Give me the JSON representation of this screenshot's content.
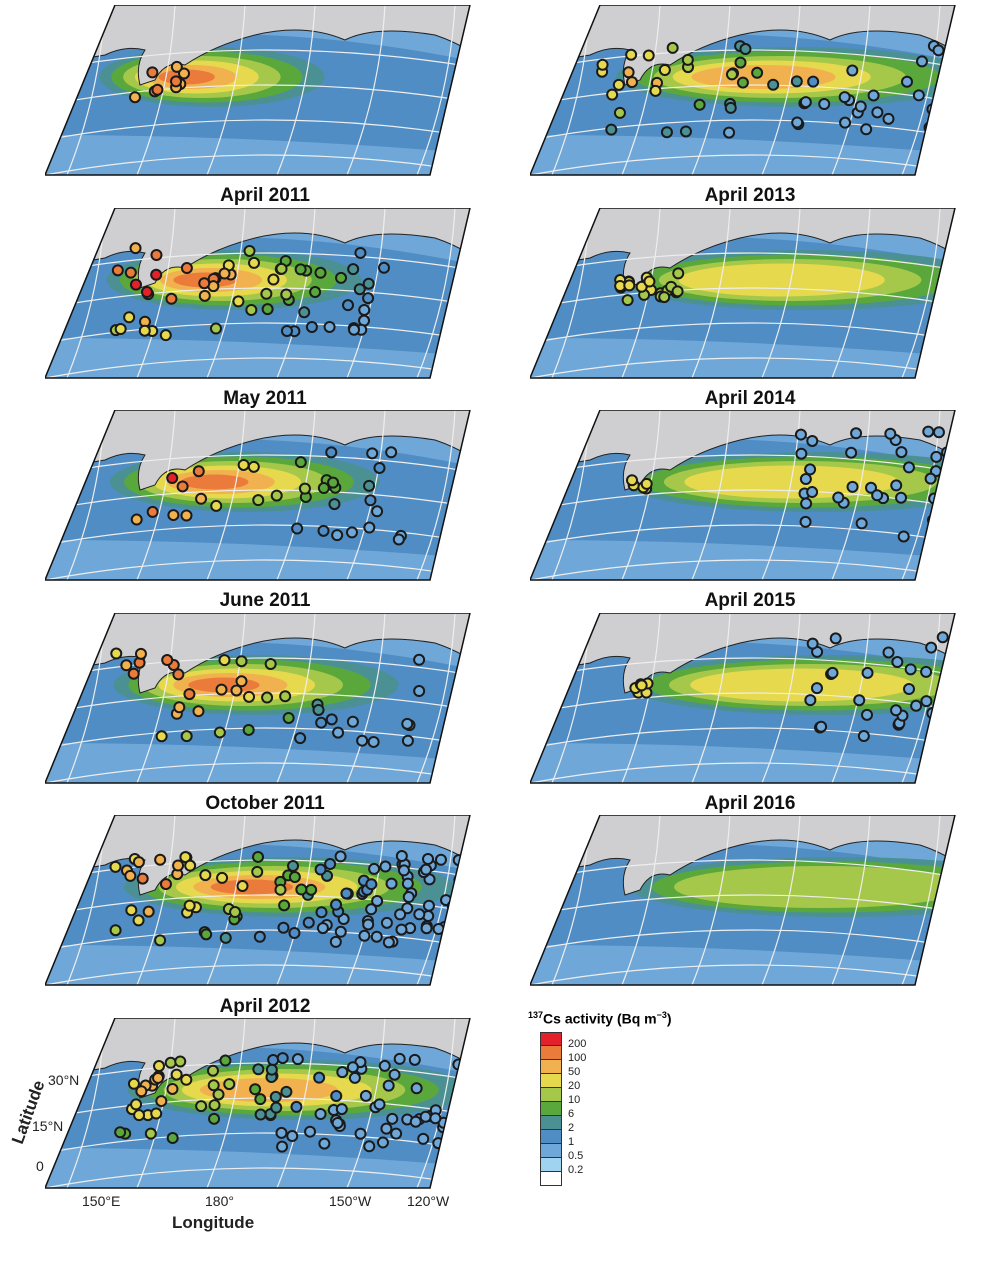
{
  "panels": [
    {
      "title": "April 2011",
      "plume": 4,
      "extent": 0.35,
      "stations": "near"
    },
    {
      "title": "May 2011",
      "plume": 5,
      "extent": 0.45,
      "stations": "line"
    },
    {
      "title": "June 2011",
      "plume": 5,
      "extent": 0.5,
      "stations": "line2"
    },
    {
      "title": "October 2011",
      "plume": 5,
      "extent": 0.55,
      "stations": "mid"
    },
    {
      "title": "April 2012",
      "plume": 4,
      "extent": 0.7,
      "stations": "dense"
    },
    {
      "title": "",
      "plume": 3,
      "extent": 0.75,
      "stations": "dense2"
    },
    {
      "title": "April 2013",
      "plume": 3,
      "extent": 0.8,
      "stations": "tracks"
    },
    {
      "title": "April 2014",
      "plume": 2,
      "extent": 0.85,
      "stations": "japan"
    },
    {
      "title": "April 2015",
      "plume": 2,
      "extent": 0.9,
      "stations": "east"
    },
    {
      "title": "April 2016",
      "plume": 2,
      "extent": 0.95,
      "stations": "east2"
    },
    {
      "title": "",
      "plume": 1,
      "extent": 1.0,
      "stations": "none"
    }
  ],
  "axes": {
    "xlabel": "Longitude",
    "ylabel": "Latitude",
    "xticks": [
      "150°E",
      "180°",
      "150°W",
      "120°W"
    ],
    "yticks": [
      "30°N",
      "15°N",
      "0"
    ]
  },
  "legend": {
    "title_sup": "137",
    "title": "Cs activity (Bq m",
    "title_exp": "−3",
    "title_end": ")",
    "levels": [
      "200",
      "100",
      "50",
      "20",
      "10",
      "6",
      "2",
      "1",
      "0.5",
      "0.2"
    ],
    "colors": [
      "#e4202a",
      "#ea7b3a",
      "#f0b14e",
      "#e6d94e",
      "#a6c84a",
      "#5aa83c",
      "#4b9194",
      "#4f8dc4",
      "#6fa8d8",
      "#9fd3ef",
      "#ffffff"
    ]
  },
  "colors": {
    "land": "#cfcfd1",
    "graticule": "#eeeeee"
  }
}
